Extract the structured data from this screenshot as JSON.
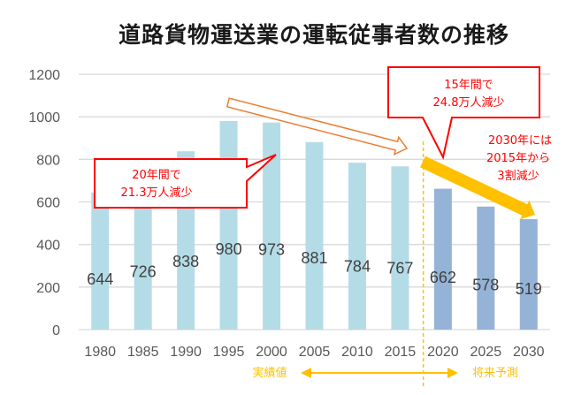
{
  "chart_data": {
    "type": "bar",
    "title": "道路貨物運送業の運転従事者数の推移",
    "xlabel": "",
    "ylabel": "",
    "ylim": [
      0,
      1200
    ],
    "yticks": [
      0,
      200,
      400,
      600,
      800,
      1000,
      1200
    ],
    "grid": true,
    "categories": [
      "1980",
      "1985",
      "1990",
      "1995",
      "2000",
      "2005",
      "2010",
      "2015",
      "2020",
      "2025",
      "2030"
    ],
    "series": [
      {
        "name": "実績値",
        "color": "#b4dce6",
        "values": [
          644,
          726,
          838,
          980,
          973,
          881,
          784,
          767,
          null,
          null,
          null
        ]
      },
      {
        "name": "将来予測",
        "color": "#95b3d7",
        "values": [
          null,
          null,
          null,
          null,
          null,
          null,
          null,
          null,
          662,
          578,
          519
        ]
      }
    ],
    "annotations": [
      {
        "id": "callout-20yr",
        "lines": [
          "20年間で",
          "21.3万人減少"
        ],
        "color": "#ff0000"
      },
      {
        "id": "callout-15yr",
        "lines": [
          "15年間で",
          "24.8万人減少"
        ],
        "color": "#ff0000"
      },
      {
        "id": "note-2030",
        "lines": [
          "2030年には",
          "2015年から",
          "3割減少"
        ],
        "color": "#ff0000"
      }
    ],
    "legend": {
      "actual_label": "実績値",
      "forecast_label": "将来予測",
      "color": "#ffc000",
      "placement": "bottom"
    },
    "divider_between": [
      "2015",
      "2020"
    ],
    "trend_arrows": [
      {
        "from": "1995",
        "to": "2015",
        "style": "hollow",
        "color": "#ed7d31"
      },
      {
        "from": "2020",
        "to": "2030",
        "style": "solid",
        "color": "#ffc000"
      }
    ]
  }
}
